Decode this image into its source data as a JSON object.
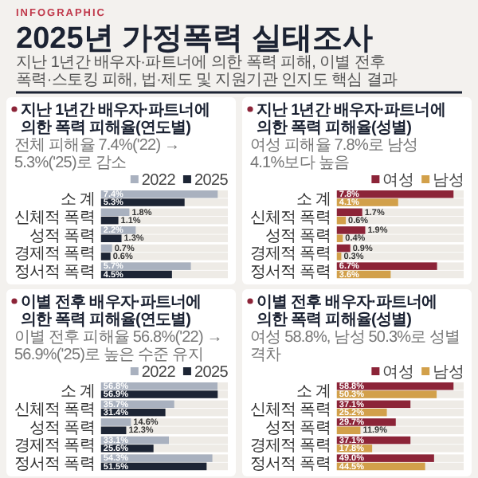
{
  "chart_data": [
    {
      "type": "other",
      "title": "2025년 가정폭력 실태조사",
      "subtitle": "지난 1년간 배우자·파트너에 의한 폭력 피해, 이별 전후 폭력·스토킹 피해, 법·제도 및 지원기관 인지도 핵심 결과",
      "annotations": [
        "INFOGRAPHIC"
      ]
    },
    {
      "type": "bar",
      "orientation": "horizontal",
      "title": "지난 1년간 배우자·파트너에 의한 폭력 피해율(연도별)",
      "subtitle": "전체 피해율 7.4%('22) → 5.3%('25)로 감소",
      "legend": "top right",
      "categories": [
        "소 계",
        "신체적 폭력",
        "성적 폭력",
        "경제적 폭력",
        "정서적 폭력"
      ],
      "series": [
        {
          "name": "2022",
          "color": "#a9b1bf",
          "values": [
            7.4,
            1.8,
            2.2,
            0.7,
            5.7
          ],
          "value_labels": [
            "7.4%",
            "1.8%",
            "2.2%",
            "0.7%",
            "5.7%"
          ]
        },
        {
          "name": "2025",
          "color": "#1d2535",
          "values": [
            5.3,
            1.1,
            1.3,
            0.6,
            4.5
          ],
          "value_labels": [
            "5.3%",
            "1.1%",
            "1.3%",
            "0.6%",
            "4.5%"
          ]
        }
      ]
    },
    {
      "type": "bar",
      "orientation": "horizontal",
      "title": "지난 1년간 배우자·파트너에 의한 폭력 피해율(성별)",
      "subtitle": "여성 피해율 7.8%로 남성 4.1%보다 높음",
      "legend": "top right",
      "categories": [
        "소 계",
        "신체적 폭력",
        "성적 폭력",
        "경제적 폭력",
        "정서적 폭력"
      ],
      "series": [
        {
          "name": "여성",
          "color": "#8c2438",
          "values": [
            7.8,
            1.7,
            1.9,
            0.9,
            6.7
          ],
          "value_labels": [
            "7.8%",
            "1.7%",
            "1.9%",
            "0.9%",
            "6.7%"
          ]
        },
        {
          "name": "남성",
          "color": "#d2a04a",
          "values": [
            4.1,
            0.6,
            0.4,
            0.3,
            3.6
          ],
          "value_labels": [
            "4.1%",
            "0.6%",
            "0.4%",
            "0.3%",
            "3.6%"
          ]
        }
      ]
    },
    {
      "type": "bar",
      "orientation": "horizontal",
      "title": "이별 전후 배우자·파트너에 의한 폭력 피해율(연도별)",
      "subtitle": "이별 전후 피해율 56.8%('22) → 56.9%('25)로 높은 수준 유지",
      "legend": "top right",
      "categories": [
        "소 계",
        "신체적 폭력",
        "성적 폭력",
        "경제적 폭력",
        "정서적 폭력"
      ],
      "series": [
        {
          "name": "2022",
          "color": "#a9b1bf",
          "values": [
            56.8,
            35.7,
            14.6,
            33.1,
            54.3
          ],
          "value_labels": [
            "56.8%",
            "35.7%",
            "14.6%",
            "33.1%",
            "54.3%"
          ]
        },
        {
          "name": "2025",
          "color": "#1d2535",
          "values": [
            56.9,
            31.4,
            12.3,
            25.6,
            51.5
          ],
          "value_labels": [
            "56.9%",
            "31.4%",
            "12.3%",
            "25.6%",
            "51.5%"
          ]
        }
      ]
    },
    {
      "type": "bar",
      "orientation": "horizontal",
      "title": "이별 전후 배우자·파트너에 의한 폭력 피해율(성별)",
      "subtitle": "여성 58.8%, 남성 50.3%로 성별 격차",
      "legend": "top right",
      "categories": [
        "소 계",
        "신체적 폭력",
        "성적 폭력",
        "경제적 폭력",
        "정서적 폭력"
      ],
      "series": [
        {
          "name": "여성",
          "color": "#8c2438",
          "values": [
            58.8,
            37.1,
            29.7,
            37.1,
            49.0
          ],
          "value_labels": [
            "58.8%",
            "37.1%",
            "29.7%",
            "37.1%",
            "49.0%"
          ]
        },
        {
          "name": "남성",
          "color": "#d2a04a",
          "values": [
            50.3,
            25.2,
            11.9,
            17.8,
            44.5
          ],
          "value_labels": [
            "50.3%",
            "25.2%",
            "11.9%",
            "17.8%",
            "44.5%"
          ]
        }
      ]
    }
  ]
}
